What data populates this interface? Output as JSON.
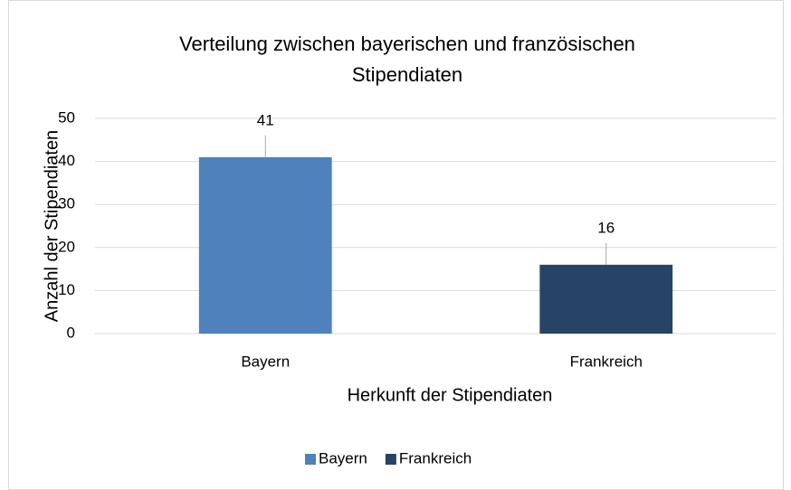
{
  "chart_data": {
    "type": "bar",
    "title": "Verteilung zwischen bayerischen und französischen Stipendiaten",
    "categories": [
      "Bayern",
      "Frankreich"
    ],
    "values": [
      41,
      16
    ],
    "colors": [
      "#4f81bd",
      "#264466"
    ],
    "xlabel": "Herkunft der Stipendiaten",
    "ylabel": "Anzahl der Stipendiaten",
    "ylim": [
      0,
      50
    ],
    "yticks": [
      0,
      10,
      20,
      30,
      40,
      50
    ],
    "grid": true,
    "legend": "bottom"
  }
}
